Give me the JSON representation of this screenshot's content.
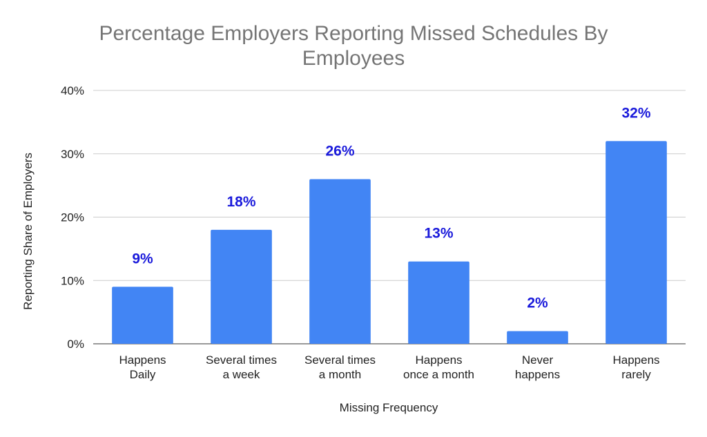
{
  "chart_data": {
    "type": "bar",
    "title": [
      "Percentage Employers Reporting Missed Schedules By",
      "Employees"
    ],
    "xlabel": "Missing Frequency",
    "ylabel": "Reporting Share of Employers",
    "categories": [
      [
        "Happens",
        "Daily"
      ],
      [
        "Several times",
        "a week"
      ],
      [
        "Several times",
        "a month"
      ],
      [
        "Happens",
        "once a month"
      ],
      [
        "Never",
        "happens"
      ],
      [
        "Happens",
        "rarely"
      ]
    ],
    "values": [
      9,
      18,
      26,
      13,
      2,
      32
    ],
    "data_labels": [
      "9%",
      "18%",
      "26%",
      "13%",
      "2%",
      "32%"
    ],
    "ylim": [
      0,
      40
    ],
    "yticks": [
      0,
      10,
      20,
      30,
      40
    ],
    "ytick_labels": [
      "0%",
      "10%",
      "20%",
      "30%",
      "40%"
    ],
    "grid": true,
    "legend": "none",
    "colors": {
      "bar": "#4285f4",
      "data_label": "#1a1adb",
      "title": "#757575"
    }
  }
}
